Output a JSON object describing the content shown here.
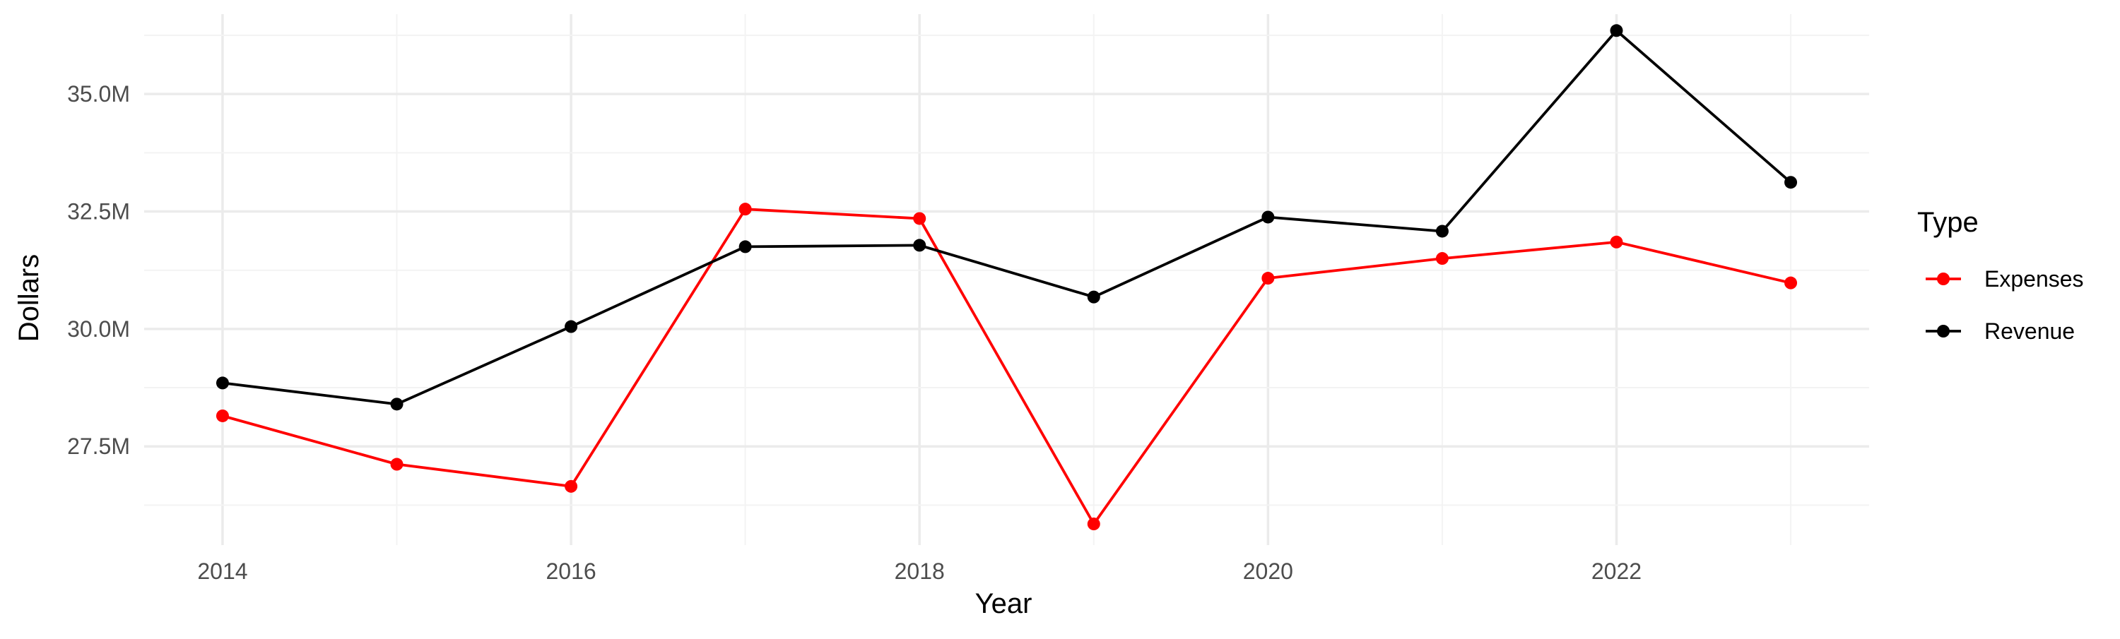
{
  "chart_data": {
    "type": "line",
    "title": "",
    "xlabel": "Year",
    "ylabel": "Dollars",
    "x": [
      2014,
      2015,
      2016,
      2017,
      2018,
      2019,
      2020,
      2021,
      2022,
      2023
    ],
    "x_ticks": [
      "2014",
      "2016",
      "2018",
      "2020",
      "2022"
    ],
    "y_ticks": [
      "27.5M",
      "30.0M",
      "32.5M",
      "35.0M"
    ],
    "xlim": [
      2013.55,
      2023.45
    ],
    "ylim": [
      25.4,
      36.7
    ],
    "grid": true,
    "legend": {
      "title": "Type",
      "placement": "right"
    },
    "series": [
      {
        "name": "Expenses",
        "color": "#ff0000",
        "values": [
          28.15,
          27.12,
          26.65,
          32.55,
          32.35,
          25.85,
          31.08,
          31.5,
          31.85,
          30.98
        ]
      },
      {
        "name": "Revenue",
        "color": "#000000",
        "values": [
          28.85,
          28.4,
          30.05,
          31.75,
          31.78,
          30.68,
          32.38,
          32.08,
          36.35,
          33.12
        ]
      }
    ]
  }
}
